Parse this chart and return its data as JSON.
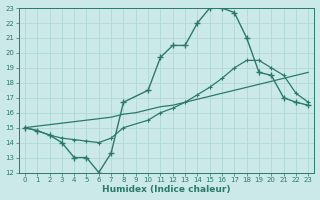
{
  "background_color": "#cce9e9",
  "grid_color": "#b0d8d8",
  "line_color": "#2a7a6a",
  "xlabel": "Humidex (Indice chaleur)",
  "ylim": [
    12,
    23
  ],
  "xlim": [
    -0.5,
    23.5
  ],
  "yticks": [
    12,
    13,
    14,
    15,
    16,
    17,
    18,
    19,
    20,
    21,
    22,
    23
  ],
  "xticks": [
    0,
    1,
    2,
    3,
    4,
    5,
    6,
    7,
    8,
    9,
    10,
    11,
    12,
    13,
    14,
    15,
    16,
    17,
    18,
    19,
    20,
    21,
    22,
    23
  ],
  "curve1_x": [
    0,
    1,
    2,
    3,
    4,
    5,
    6,
    7,
    8,
    10,
    11,
    12,
    13,
    14,
    15,
    16,
    17,
    18,
    19,
    20,
    21,
    22,
    23
  ],
  "curve1_y": [
    15.0,
    14.8,
    14.5,
    14.0,
    13.0,
    13.0,
    12.0,
    13.3,
    16.7,
    17.5,
    19.7,
    20.5,
    20.5,
    22.0,
    23.0,
    23.0,
    22.7,
    21.0,
    18.7,
    18.5,
    17.0,
    16.7,
    16.5
  ],
  "curve2_x": [
    0,
    1,
    2,
    3,
    4,
    5,
    6,
    7,
    8,
    9,
    10,
    11,
    12,
    13,
    14,
    15,
    16,
    17,
    18,
    19,
    20,
    21,
    22,
    23
  ],
  "curve2_y": [
    15.0,
    15.1,
    15.2,
    15.3,
    15.4,
    15.5,
    15.6,
    15.7,
    15.9,
    16.0,
    16.2,
    16.4,
    16.5,
    16.7,
    16.9,
    17.1,
    17.3,
    17.5,
    17.7,
    17.9,
    18.1,
    18.3,
    18.5,
    18.7
  ],
  "curve3_x": [
    0,
    1,
    2,
    3,
    4,
    5,
    6,
    7,
    8,
    10,
    11,
    12,
    13,
    14,
    15,
    16,
    17,
    18,
    19,
    20,
    21,
    22,
    23
  ],
  "curve3_y": [
    15.0,
    14.8,
    14.5,
    14.3,
    14.2,
    14.1,
    14.0,
    14.3,
    15.0,
    15.5,
    16.0,
    16.3,
    16.7,
    17.2,
    17.7,
    18.3,
    19.0,
    19.5,
    19.5,
    19.0,
    18.5,
    17.3,
    16.7
  ]
}
